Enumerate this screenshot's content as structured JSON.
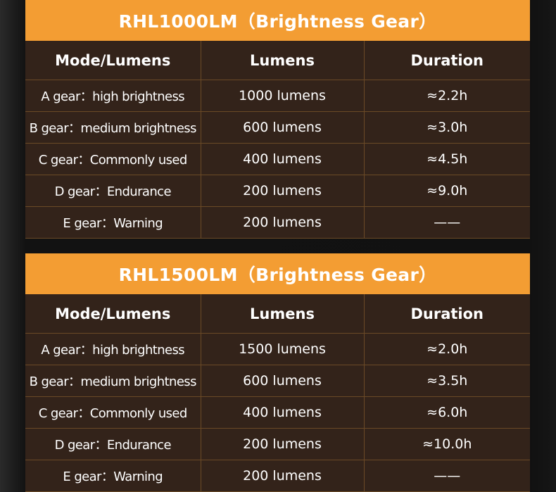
{
  "colors": {
    "header": "#f39d33",
    "cell": "#33231a",
    "grid": "#6b4a26"
  },
  "tables": [
    {
      "title": "RHL1000LM（Brightness Gear）",
      "columns": [
        "Mode/Lumens",
        "Lumens",
        "Duration"
      ],
      "rows": [
        [
          "A gear：high brightness",
          "1000 lumens",
          "≈2.2h"
        ],
        [
          "B gear：medium brightness",
          "600 lumens",
          "≈3.0h"
        ],
        [
          "C gear：Commonly used",
          "400 lumens",
          "≈4.5h"
        ],
        [
          "D gear：Endurance",
          "200 lumens",
          "≈9.0h"
        ],
        [
          "E gear：Warning",
          "200 lumens",
          "——"
        ]
      ]
    },
    {
      "title": "RHL1500LM（Brightness Gear）",
      "columns": [
        "Mode/Lumens",
        "Lumens",
        "Duration"
      ],
      "rows": [
        [
          "A gear：high brightness",
          "1500 lumens",
          "≈2.0h"
        ],
        [
          "B gear：medium brightness",
          "600 lumens",
          "≈3.5h"
        ],
        [
          "C gear：Commonly used",
          "400 lumens",
          "≈6.0h"
        ],
        [
          "D gear：Endurance",
          "200 lumens",
          "≈10.0h"
        ],
        [
          "E gear：Warning",
          "200 lumens",
          "——"
        ]
      ]
    }
  ]
}
